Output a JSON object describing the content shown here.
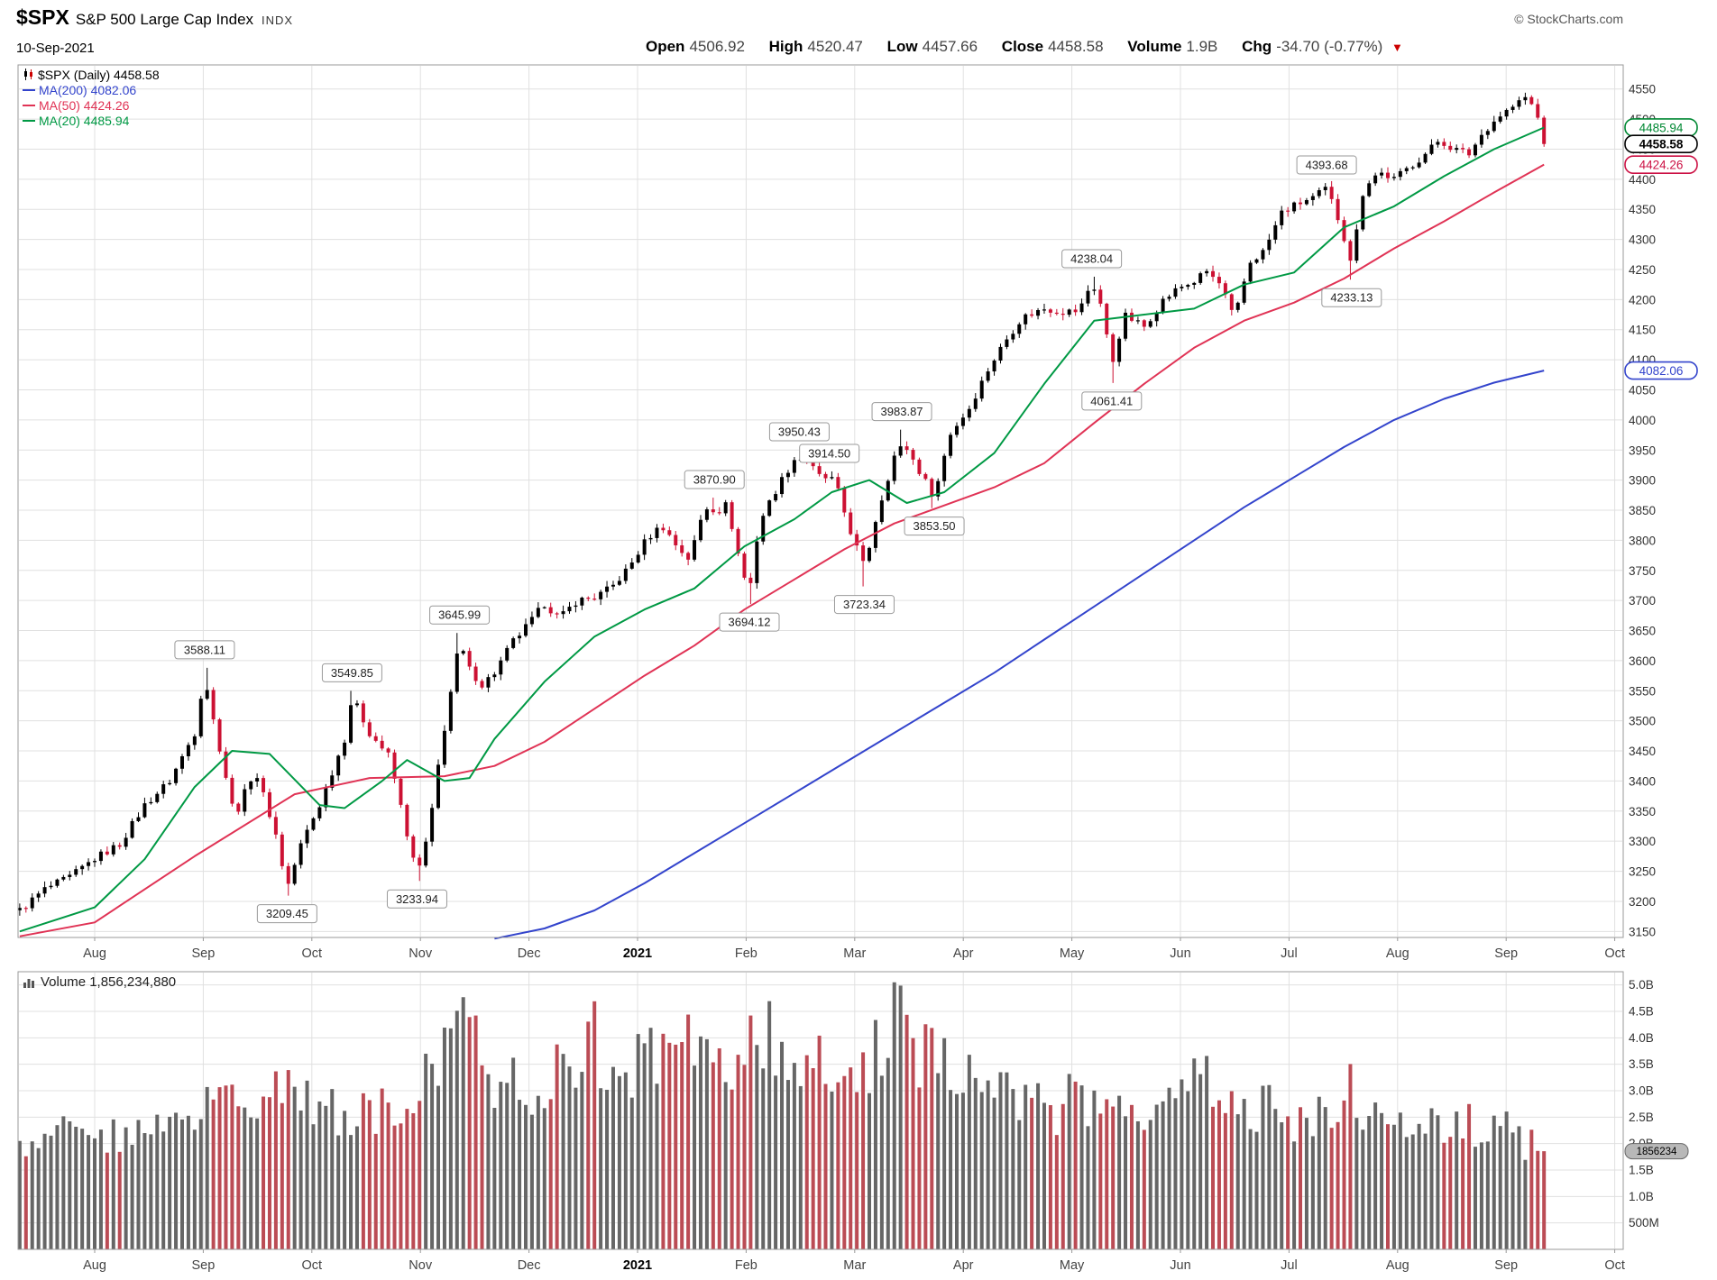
{
  "header": {
    "symbol": "$SPX",
    "name": "S&P 500 Large Cap Index",
    "exchange": "INDX",
    "copyright": "© StockCharts.com",
    "date": "10-Sep-2021",
    "quote": [
      {
        "label": "Open",
        "value": "4506.92"
      },
      {
        "label": "High",
        "value": "4520.47"
      },
      {
        "label": "Low",
        "value": "4457.66"
      },
      {
        "label": "Close",
        "value": "4458.58"
      },
      {
        "label": "Volume",
        "value": "1.9B"
      },
      {
        "label": "Chg",
        "value": "-34.70 (-0.77%)"
      }
    ]
  },
  "legend": {
    "main": "$SPX (Daily) 4458.58",
    "ma200": "MA(200) 4082.06",
    "ma50": "MA(50) 4424.26",
    "ma20": "MA(20) 4485.94"
  },
  "volume_legend": "Volume 1,856,234,880",
  "chart_data": {
    "type": "candlestick",
    "symbol": "$SPX",
    "timeframe": "Daily",
    "last_close": 4458.58,
    "price_axis": {
      "min": 3150,
      "max": 4550,
      "step": 50
    },
    "volume_axis_labels": [
      [
        "5.0B",
        5.0
      ],
      [
        "4.5B",
        4.5
      ],
      [
        "4.0B",
        4.0
      ],
      [
        "3.5B",
        3.5
      ],
      [
        "3.0B",
        3.0
      ],
      [
        "2.5B",
        2.5
      ],
      [
        "2.0B",
        2.0
      ],
      [
        "1.5B",
        1.5
      ],
      [
        "1.0B",
        1.0
      ],
      [
        "500M",
        0.5
      ]
    ],
    "months": [
      "Aug",
      "Sep",
      "Oct",
      "Nov",
      "Dec",
      "2021",
      "Feb",
      "Mar",
      "Apr",
      "May",
      "Jun",
      "Jul",
      "Aug",
      "Sep",
      "Oct"
    ],
    "bold_month_index": 5,
    "price_anchors": [
      [
        -3,
        3185
      ],
      [
        -2,
        3220
      ],
      [
        -1,
        3240
      ],
      [
        0,
        3271
      ],
      [
        1,
        3295
      ],
      [
        2,
        3360
      ],
      [
        3,
        3400
      ],
      [
        4,
        3480
      ],
      [
        4.4,
        3580
      ],
      [
        4.6,
        3528
      ],
      [
        5,
        3455
      ],
      [
        5.6,
        3340
      ],
      [
        6.4,
        3420
      ],
      [
        7.2,
        3320
      ],
      [
        7.7,
        3222
      ],
      [
        8.3,
        3300
      ],
      [
        9,
        3360
      ],
      [
        10,
        3470
      ],
      [
        10.3,
        3540
      ],
      [
        11,
        3480
      ],
      [
        11.8,
        3440
      ],
      [
        12.4,
        3330
      ],
      [
        12.9,
        3242
      ],
      [
        13.4,
        3320
      ],
      [
        13.8,
        3440
      ],
      [
        14.3,
        3560
      ],
      [
        14.6,
        3630
      ],
      [
        15,
        3585
      ],
      [
        15.5,
        3560
      ],
      [
        16,
        3580
      ],
      [
        16.7,
        3630
      ],
      [
        17.4,
        3662
      ],
      [
        18,
        3695
      ],
      [
        18.6,
        3670
      ],
      [
        19.3,
        3700
      ],
      [
        20,
        3705
      ],
      [
        20.7,
        3722
      ],
      [
        21.4,
        3756
      ],
      [
        22.1,
        3803
      ],
      [
        22.7,
        3825
      ],
      [
        23.3,
        3790
      ],
      [
        23.8,
        3768
      ],
      [
        24.4,
        3855
      ],
      [
        25,
        3850
      ],
      [
        25.3,
        3860
      ],
      [
        25.9,
        3750
      ],
      [
        26.2,
        3714
      ],
      [
        26.6,
        3830
      ],
      [
        27.3,
        3887
      ],
      [
        28,
        3935
      ],
      [
        28.4,
        3936
      ],
      [
        29,
        3906
      ],
      [
        29.6,
        3900
      ],
      [
        30.2,
        3820
      ],
      [
        30.8,
        3755
      ],
      [
        31.3,
        3842
      ],
      [
        32,
        3940
      ],
      [
        32.4,
        3960
      ],
      [
        33,
        3915
      ],
      [
        33.6,
        3872
      ],
      [
        34.2,
        3975
      ],
      [
        35,
        4020
      ],
      [
        35.7,
        4080
      ],
      [
        36.4,
        4129
      ],
      [
        37.1,
        4170
      ],
      [
        38,
        4185
      ],
      [
        38.7,
        4180
      ],
      [
        39.4,
        4181
      ],
      [
        39.9,
        4230
      ],
      [
        40.3,
        4188
      ],
      [
        40.7,
        4090
      ],
      [
        41.2,
        4174
      ],
      [
        42,
        4155
      ],
      [
        42.7,
        4197
      ],
      [
        43.4,
        4220
      ],
      [
        44,
        4230
      ],
      [
        44.5,
        4247
      ],
      [
        45.1,
        4222
      ],
      [
        45.6,
        4166
      ],
      [
        46.2,
        4261
      ],
      [
        46.8,
        4281
      ],
      [
        47.5,
        4345
      ],
      [
        48.2,
        4360
      ],
      [
        48.8,
        4370
      ],
      [
        49.3,
        4385
      ],
      [
        49.8,
        4330
      ],
      [
        50.3,
        4262
      ],
      [
        50.8,
        4390
      ],
      [
        51.4,
        4412
      ],
      [
        52,
        4400
      ],
      [
        52.6,
        4420
      ],
      [
        53.2,
        4440
      ],
      [
        53.8,
        4465
      ],
      [
        54.4,
        4450
      ],
      [
        55,
        4442
      ],
      [
        55.6,
        4480
      ],
      [
        56.2,
        4505
      ],
      [
        56.8,
        4522
      ],
      [
        57.3,
        4537
      ],
      [
        57.7,
        4510
      ],
      [
        58,
        4459
      ]
    ],
    "ma20_anchors": [
      [
        -3,
        3150
      ],
      [
        0,
        3190
      ],
      [
        2,
        3270
      ],
      [
        4,
        3390
      ],
      [
        5.5,
        3450
      ],
      [
        7,
        3445
      ],
      [
        9,
        3360
      ],
      [
        10,
        3355
      ],
      [
        11.5,
        3400
      ],
      [
        12.5,
        3435
      ],
      [
        14,
        3400
      ],
      [
        15,
        3405
      ],
      [
        16,
        3470
      ],
      [
        18,
        3565
      ],
      [
        20,
        3640
      ],
      [
        22,
        3685
      ],
      [
        24,
        3720
      ],
      [
        26,
        3790
      ],
      [
        28,
        3835
      ],
      [
        29.5,
        3880
      ],
      [
        31,
        3900
      ],
      [
        32.5,
        3862
      ],
      [
        34,
        3880
      ],
      [
        36,
        3945
      ],
      [
        38,
        4060
      ],
      [
        40,
        4165
      ],
      [
        42,
        4175
      ],
      [
        44,
        4185
      ],
      [
        46,
        4225
      ],
      [
        48,
        4245
      ],
      [
        50,
        4320
      ],
      [
        52,
        4355
      ],
      [
        54,
        4405
      ],
      [
        56,
        4450
      ],
      [
        58,
        4485.94
      ]
    ],
    "ma50_anchors": [
      [
        -3,
        3142
      ],
      [
        0,
        3165
      ],
      [
        4,
        3275
      ],
      [
        8,
        3378
      ],
      [
        11,
        3405
      ],
      [
        14,
        3408
      ],
      [
        16,
        3425
      ],
      [
        18,
        3465
      ],
      [
        20,
        3520
      ],
      [
        22,
        3575
      ],
      [
        24,
        3625
      ],
      [
        26,
        3685
      ],
      [
        28,
        3735
      ],
      [
        30,
        3785
      ],
      [
        32,
        3828
      ],
      [
        34,
        3858
      ],
      [
        36,
        3888
      ],
      [
        38,
        3928
      ],
      [
        40,
        3995
      ],
      [
        42,
        4060
      ],
      [
        44,
        4120
      ],
      [
        46,
        4165
      ],
      [
        48,
        4195
      ],
      [
        50,
        4235
      ],
      [
        52,
        4285
      ],
      [
        54,
        4330
      ],
      [
        56,
        4378
      ],
      [
        58,
        4424.26
      ]
    ],
    "ma200_anchors": [
      [
        16,
        3138
      ],
      [
        18,
        3155
      ],
      [
        20,
        3185
      ],
      [
        22,
        3230
      ],
      [
        24,
        3280
      ],
      [
        26,
        3330
      ],
      [
        28,
        3380
      ],
      [
        30,
        3430
      ],
      [
        32,
        3480
      ],
      [
        34,
        3530
      ],
      [
        36,
        3580
      ],
      [
        38,
        3635
      ],
      [
        40,
        3690
      ],
      [
        42,
        3745
      ],
      [
        44,
        3800
      ],
      [
        46,
        3855
      ],
      [
        48,
        3905
      ],
      [
        50,
        3955
      ],
      [
        52,
        4000
      ],
      [
        54,
        4035
      ],
      [
        56,
        4062
      ],
      [
        58,
        4082.06
      ]
    ],
    "volume_anchors": [
      [
        -3,
        2.0
      ],
      [
        0,
        2.3
      ],
      [
        2,
        2.2
      ],
      [
        4,
        2.5
      ],
      [
        5,
        3.0
      ],
      [
        7,
        2.9
      ],
      [
        8,
        3.1
      ],
      [
        9,
        2.6
      ],
      [
        11,
        2.6
      ],
      [
        13,
        3.2
      ],
      [
        14.6,
        4.0
      ],
      [
        15,
        5.0
      ],
      [
        15.4,
        3.6
      ],
      [
        16,
        3.3
      ],
      [
        17,
        3.0
      ],
      [
        19,
        3.4
      ],
      [
        19.9,
        4.5
      ],
      [
        20.3,
        3.4
      ],
      [
        21,
        3.2
      ],
      [
        22,
        3.6
      ],
      [
        23,
        3.5
      ],
      [
        24,
        3.8
      ],
      [
        25,
        3.6
      ],
      [
        26,
        3.6
      ],
      [
        26.9,
        4.1
      ],
      [
        27.4,
        3.6
      ],
      [
        28.5,
        3.5
      ],
      [
        30,
        3.7
      ],
      [
        31,
        3.6
      ],
      [
        32.4,
        4.85
      ],
      [
        32.8,
        3.8
      ],
      [
        34,
        3.4
      ],
      [
        35,
        3.3
      ],
      [
        36,
        3.0
      ],
      [
        37,
        2.8
      ],
      [
        38.5,
        2.7
      ],
      [
        40,
        2.95
      ],
      [
        41,
        3.0
      ],
      [
        42,
        2.8
      ],
      [
        43,
        2.7
      ],
      [
        44.4,
        3.6
      ],
      [
        45,
        2.9
      ],
      [
        46,
        2.8
      ],
      [
        47,
        2.6
      ],
      [
        48,
        2.4
      ],
      [
        49,
        2.5
      ],
      [
        50.3,
        3.0
      ],
      [
        51,
        2.4
      ],
      [
        52,
        2.3
      ],
      [
        53,
        2.2
      ],
      [
        54,
        2.3
      ],
      [
        55,
        2.4
      ],
      [
        56,
        2.3
      ],
      [
        57,
        2.1
      ],
      [
        58,
        1.856
      ]
    ],
    "annotations": [
      {
        "text": "3588.11",
        "week": 4.4,
        "side": "above"
      },
      {
        "text": "3209.45",
        "week": 7.7,
        "side": "below"
      },
      {
        "text": "3549.85",
        "week": 10.3,
        "side": "above"
      },
      {
        "text": "3233.94",
        "week": 12.9,
        "side": "below"
      },
      {
        "text": "3645.99",
        "week": 14.6,
        "side": "above"
      },
      {
        "text": "3870.90",
        "week": 24.8,
        "side": "above"
      },
      {
        "text": "3694.12",
        "week": 26.2,
        "side": "below"
      },
      {
        "text": "3950.43",
        "week": 28.2,
        "side": "above"
      },
      {
        "text": "3914.50",
        "week": 29.4,
        "side": "above"
      },
      {
        "text": "3723.34",
        "week": 30.8,
        "side": "below"
      },
      {
        "text": "3983.87",
        "week": 32.3,
        "side": "above"
      },
      {
        "text": "3853.50",
        "week": 33.6,
        "side": "below"
      },
      {
        "text": "4238.04",
        "week": 39.9,
        "side": "above"
      },
      {
        "text": "4061.41",
        "week": 40.7,
        "side": "below"
      },
      {
        "text": "4393.68",
        "week": 49.3,
        "side": "above"
      },
      {
        "text": "4233.13",
        "week": 50.3,
        "side": "below"
      }
    ],
    "price_callouts": [
      {
        "text": "4485.94",
        "value": 4485.94,
        "color": "#008833",
        "bold": false
      },
      {
        "text": "4424.26",
        "value": 4424.26,
        "color": "#cc1144",
        "bold": false
      },
      {
        "text": "4082.06",
        "value": 4082.06,
        "color": "#3344cc",
        "bold": false
      },
      {
        "text": "4458.58",
        "value": 4458.58,
        "color": "#000000",
        "bold": true
      }
    ],
    "volume_callout": {
      "text": "1856234",
      "value": 1.856
    },
    "colors": {
      "up": "#000000",
      "down": "#cc1133",
      "ma20": "#009944",
      "ma50": "#e03355",
      "ma200": "#3344cc",
      "grid": "#e0e0e0",
      "frame": "#999999",
      "vol_up": "#666666",
      "vol_down": "#bb4c55",
      "axis_text": "#333333"
    }
  }
}
